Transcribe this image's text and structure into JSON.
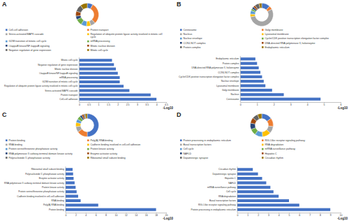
{
  "chart_data": [
    {
      "type": "pie",
      "title": "A",
      "legend": "bottom",
      "categories": [
        "Cell-cell adhesion",
        "Protein transport",
        "Stress-activated MAPK cascade",
        "Regulation of ubiquitin protein ligase activity involved in mitotic cell cycle",
        "G2/M transition of mitotic cell cycle",
        "mRNA processing",
        "I-kappaB kinase/NF-kappaB signaling",
        "Mitotic nuclear division",
        "Negative regulation of gene expression",
        "Mitotic cell cycle"
      ],
      "values": [
        8,
        30,
        7,
        6,
        8,
        9,
        5,
        7,
        10,
        10
      ],
      "colors": [
        "#4472c4",
        "#ed7d31",
        "#a5a5a5",
        "#ffc000",
        "#5b9bd5",
        "#70ad47",
        "#264478",
        "#9e480e",
        "#636363",
        "#997300"
      ]
    },
    {
      "type": "bar",
      "orientation": "horizontal",
      "color": "#4472c4",
      "xlabel": "-Log10",
      "categories": [
        "Cell-cell adhesion",
        "Protein transport",
        "Stress-activated MAPK cascade",
        "Regulation of ubiquitin protein ligase activity involved in mitotic cell cycle",
        "G2/M transition of mitotic cell cycle",
        "mRNA processing",
        "I-kappaB kinase/NF-kappaB signaling",
        "Mitotic nuclear division",
        "Negative regulation of gene expression",
        "Mitotic cell cycle"
      ],
      "values": [
        4.0,
        3.7,
        2.6,
        2.3,
        2.1,
        2.1,
        2.0,
        1.9,
        1.8,
        1.7
      ],
      "xlim": [
        0,
        4.5
      ],
      "xticks": [
        0,
        0.5,
        1,
        1.5,
        2,
        2.5,
        3,
        3.5,
        4,
        4.5
      ]
    },
    {
      "type": "pie",
      "title": "B",
      "legend": "bottom",
      "categories": [
        "Centrosome",
        "Golgi membrane",
        "Nucleus",
        "Lysosomal membrane",
        "Nuclear envelope",
        "Cyclin/CDK positive transcription elongation factor complex",
        "CCR4-NOT complex",
        "DNA-directed RNA polymerase II, holoenzyme",
        "Protein complex",
        "Endoplasmic reticulum"
      ],
      "values": [
        12,
        5,
        55,
        4,
        5,
        3,
        3,
        3,
        6,
        4
      ],
      "colors": [
        "#4472c4",
        "#ed7d31",
        "#a5a5a5",
        "#ffc000",
        "#5b9bd5",
        "#70ad47",
        "#264478",
        "#9e480e",
        "#636363",
        "#997300"
      ]
    },
    {
      "type": "bar",
      "orientation": "horizontal",
      "color": "#4472c4",
      "xlabel": "-Log10",
      "categories": [
        "Centrosome",
        "Nucleus",
        "Golgi membrane",
        "Lysosomal membrane",
        "Nuclear envelope",
        "Cyclin/CDK positive transcription elongation factor complex",
        "CCR4-NOT complex",
        "DNA-directed RNA polymerase II, holoenzyme",
        "Protein complex",
        "Endoplasmic reticulum"
      ],
      "values": [
        4.8,
        2.6,
        1.9,
        1.5,
        1.4,
        1.3,
        1.2,
        1.1,
        1.0,
        0.9
      ],
      "xlim": [
        0,
        6
      ],
      "xticks": [
        0,
        1,
        2,
        3,
        4,
        5,
        6
      ]
    },
    {
      "type": "pie",
      "title": "C",
      "legend": "bottom",
      "categories": [
        "Protein binding",
        "Poly(A) RNA binding",
        "RNA binding",
        "Cadherin binding involved in cell-cell adhesion",
        "Protein serine/threonine phosphatase activity",
        "Protein kinase activity",
        "RNA polymerase II carboxy-terminal domain kinase activity",
        "Enzyme activator activity",
        "Polynucleotide 5'-phosphatase activity",
        "Ribosomal small subunit binding"
      ],
      "values": [
        50,
        15,
        8,
        6,
        5,
        5,
        3,
        3,
        2,
        3
      ],
      "colors": [
        "#4472c4",
        "#ed7d31",
        "#a5a5a5",
        "#ffc000",
        "#5b9bd5",
        "#70ad47",
        "#264478",
        "#9e480e",
        "#636363",
        "#997300"
      ]
    },
    {
      "type": "bar",
      "orientation": "horizontal",
      "color": "#4472c4",
      "xlabel": "-Log10",
      "categories": [
        "Protein binding",
        "Poly(A) RNA binding",
        "RNA binding",
        "Cadherin binding involved in cell-cell adhesion",
        "Protein serine/threonine phosphatase activity",
        "Protein kinase activity",
        "RNA polymerase II carboxy-terminal domain kinase activity",
        "Enzyme activator activity",
        "Polynucleotide 5'-phosphatase activity",
        "Ribosomal small subunit binding"
      ],
      "values": [
        18,
        6.5,
        3,
        2.5,
        2.2,
        2.0,
        1.8,
        1.6,
        1.5,
        1.4
      ],
      "xlim": [
        0,
        20
      ],
      "xticks": [
        0,
        2,
        4,
        6,
        8,
        10,
        12,
        14,
        16,
        18,
        20
      ]
    },
    {
      "type": "pie",
      "title": "D",
      "legend": "bottom",
      "categories": [
        "Protein processing in endoplasmic reticulum",
        "RIG-I-like receptor signaling pathway",
        "Basal transcription factors",
        "RNA degradation",
        "Cell cycle",
        "mRNA surveillance pathway",
        "NAFLD",
        "Hepatitis C",
        "Dopaminergic synapse",
        "Circadian rhythm"
      ],
      "values": [
        15,
        12,
        10,
        12,
        11,
        9,
        9,
        8,
        8,
        6
      ],
      "colors": [
        "#4472c4",
        "#ed7d31",
        "#a5a5a5",
        "#ffc000",
        "#5b9bd5",
        "#70ad47",
        "#264478",
        "#9e480e",
        "#636363",
        "#997300"
      ]
    },
    {
      "type": "bar",
      "orientation": "horizontal",
      "color": "#4472c4",
      "xlabel": "-Log10",
      "categories": [
        "Protein processing in endoplasmic reticulum",
        "RIG-I-like receptor signaling pathway",
        "Basal transcription factors",
        "RNA degradation",
        "Cell cycle",
        "mRNA surveillance pathway",
        "NAFLD",
        "Hepatitis C",
        "Dopaminergic synapse",
        "Circadian rhythm"
      ],
      "values": [
        9,
        6,
        5,
        4,
        3.5,
        3.2,
        2.8,
        2.4,
        2,
        1.5
      ],
      "xlim": [
        0,
        10
      ],
      "xticks": [
        0,
        1,
        2,
        3,
        4,
        5,
        6,
        7,
        8,
        9,
        10
      ]
    }
  ]
}
